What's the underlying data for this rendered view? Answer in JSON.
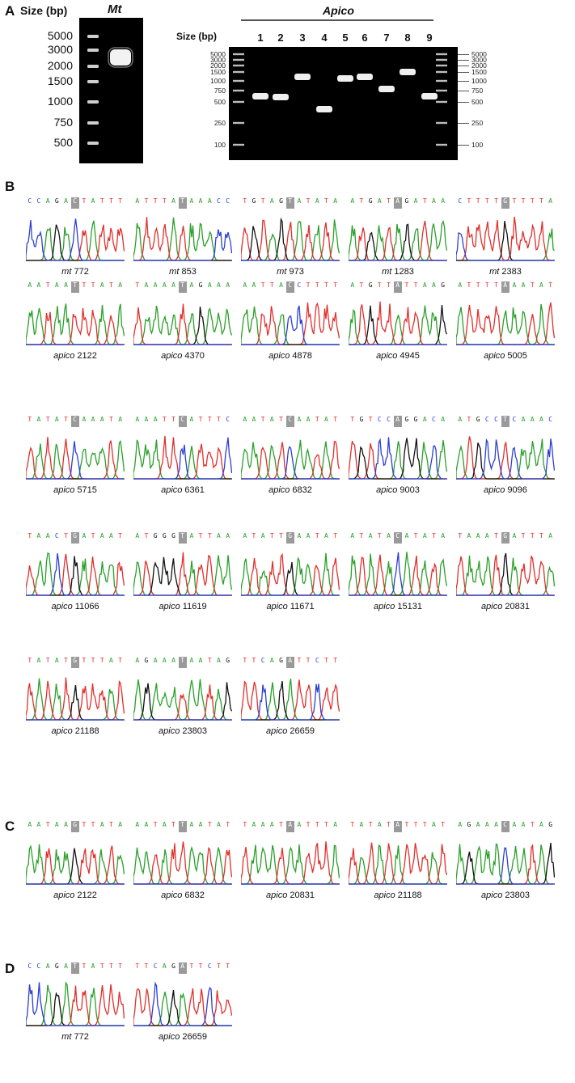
{
  "panels": {
    "A": "A",
    "B": "B",
    "C": "C",
    "D": "D"
  },
  "gel_left": {
    "size_title": "Size (bp)",
    "header": "Mt",
    "ladder_labels": [
      "5000",
      "3000",
      "2000",
      "1500",
      "1000",
      "750",
      "500"
    ]
  },
  "gel_right": {
    "size_title": "Size (bp)",
    "header": "Apico",
    "lanes": [
      "1",
      "2",
      "3",
      "4",
      "5",
      "6",
      "7",
      "8",
      "9"
    ],
    "ladder_labels_left": [
      "5000",
      "3000",
      "2000",
      "1500",
      "1000",
      "750",
      "500",
      "250",
      "100"
    ],
    "ladder_labels_right": [
      "5000",
      "3000",
      "2000",
      "1500",
      "1000",
      "750",
      "500",
      "250",
      "100"
    ]
  },
  "colors": {
    "A": "#2aa02a",
    "T": "#e0302c",
    "G": "#111111",
    "C": "#2d3fd0",
    "hl": "#9a9a9a"
  },
  "chromatograms": [
    {
      "panel": "B",
      "seq": "CCAGACTATTT",
      "hl": 5,
      "gene": "mt",
      "pos": "772"
    },
    {
      "panel": "B",
      "seq": "ATTTATAAACC",
      "hl": 5,
      "gene": "mt",
      "pos": "853"
    },
    {
      "panel": "B",
      "seq": "TGTAGTATATA",
      "hl": 5,
      "gene": "mt",
      "pos": "973"
    },
    {
      "panel": "B",
      "seq": "ATGATAGATAA",
      "hl": 5,
      "gene": "mt",
      "pos": "1283"
    },
    {
      "panel": "B",
      "seq": "CTTTTGTTTTA",
      "hl": 5,
      "gene": "mt",
      "pos": "2383"
    },
    {
      "panel": "B",
      "seq": "AATAATTTATA",
      "hl": 5,
      "gene": "apico",
      "pos": "2122"
    },
    {
      "panel": "B",
      "seq": "TAAAATAGAAA",
      "hl": 5,
      "gene": "apico",
      "pos": "4370"
    },
    {
      "panel": "B",
      "seq": "AATTACCTTTT",
      "hl": 5,
      "gene": "apico",
      "pos": "4878"
    },
    {
      "panel": "B",
      "seq": "ATGTTATTAAG",
      "hl": 5,
      "gene": "apico",
      "pos": "4945"
    },
    {
      "panel": "B",
      "seq": "ATTTTAAATAT",
      "hl": 5,
      "gene": "apico",
      "pos": "5005"
    },
    {
      "panel": "B",
      "seq": "TATATCAAATA",
      "hl": 5,
      "gene": "apico",
      "pos": "5715"
    },
    {
      "panel": "B",
      "seq": "AAATTCATTTC",
      "hl": 5,
      "gene": "apico",
      "pos": "6361"
    },
    {
      "panel": "B",
      "seq": "AATATCAATAT",
      "hl": 5,
      "gene": "apico",
      "pos": "6832"
    },
    {
      "panel": "B",
      "seq": "TGTCCAGGACA",
      "hl": 5,
      "gene": "apico",
      "pos": "9003"
    },
    {
      "panel": "B",
      "seq": "ATGCCTCAAAC",
      "hl": 5,
      "gene": "apico",
      "pos": "9096"
    },
    {
      "panel": "B",
      "seq": "TAACTGATAAT",
      "hl": 5,
      "gene": "apico",
      "pos": "11066"
    },
    {
      "panel": "B",
      "seq": "ATGGGTATTAA",
      "hl": 5,
      "gene": "apico",
      "pos": "11619"
    },
    {
      "panel": "B",
      "seq": "ATATTGAATAT",
      "hl": 5,
      "gene": "apico",
      "pos": "11671"
    },
    {
      "panel": "B",
      "seq": "ATATACATATA",
      "hl": 5,
      "gene": "apico",
      "pos": "15131"
    },
    {
      "panel": "B",
      "seq": "TAAATGATTTA",
      "hl": 5,
      "gene": "apico",
      "pos": "20831"
    },
    {
      "panel": "B",
      "seq": "TATATGTTTAT",
      "hl": 5,
      "gene": "apico",
      "pos": "21188"
    },
    {
      "panel": "B",
      "seq": "AGAAATAATAG",
      "hl": 5,
      "gene": "apico",
      "pos": "23803"
    },
    {
      "panel": "B",
      "seq": "TTCAGATTCTT",
      "hl": 5,
      "gene": "apico",
      "pos": "26659"
    },
    {
      "panel": "C",
      "seq": "AATAAGTTATA",
      "hl": 5,
      "gene": "apico",
      "pos": "2122"
    },
    {
      "panel": "C",
      "seq": "AATATTAATAT",
      "hl": 5,
      "gene": "apico",
      "pos": "6832"
    },
    {
      "panel": "C",
      "seq": "TAAATAATTTA",
      "hl": 5,
      "gene": "apico",
      "pos": "20831"
    },
    {
      "panel": "C",
      "seq": "TATATATTTAT",
      "hl": 5,
      "gene": "apico",
      "pos": "21188"
    },
    {
      "panel": "C",
      "seq": "AGAAACAATAG",
      "hl": 5,
      "gene": "apico",
      "pos": "23803"
    },
    {
      "panel": "D",
      "seq": "CCAGATTATTT",
      "hl": 5,
      "gene": "mt",
      "pos": "772"
    },
    {
      "panel": "D",
      "seq": "TTCAGATTCTT",
      "hl": 5,
      "gene": "apico",
      "pos": "26659"
    }
  ]
}
